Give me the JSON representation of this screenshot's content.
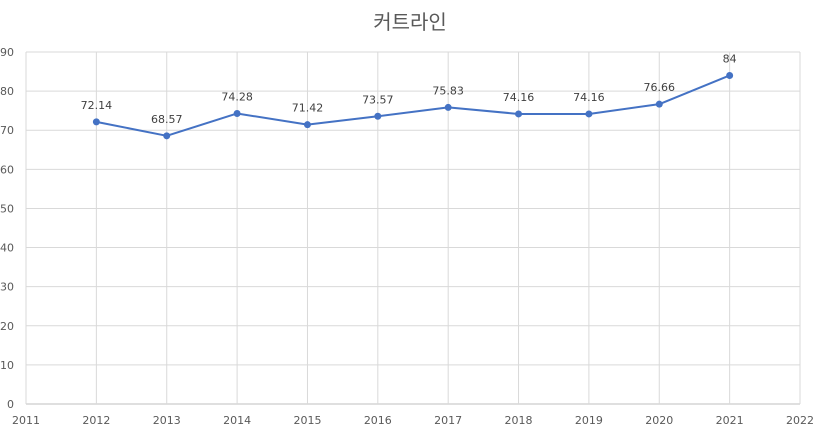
{
  "chart_data": {
    "type": "line",
    "title": "커트라인",
    "xlabel": "",
    "ylabel": "",
    "x": [
      2012,
      2013,
      2014,
      2015,
      2016,
      2017,
      2018,
      2019,
      2020,
      2021
    ],
    "series": [
      {
        "values": [
          72.14,
          68.57,
          74.28,
          71.42,
          73.57,
          75.83,
          74.16,
          74.16,
          76.66,
          84
        ],
        "labels": [
          "72.14",
          "68.57",
          "74.28",
          "71.42",
          "73.57",
          "75.83",
          "74.16",
          "74.16",
          "76.66",
          "84"
        ]
      }
    ],
    "xlim": [
      2011,
      2022
    ],
    "ylim": [
      0,
      90
    ],
    "x_ticks": [
      "2011",
      "2012",
      "2013",
      "2014",
      "2015",
      "2016",
      "2017",
      "2018",
      "2019",
      "2020",
      "2021",
      "2022"
    ],
    "y_ticks": [
      "0",
      "10",
      "20",
      "30",
      "40",
      "50",
      "60",
      "70",
      "80",
      "90"
    ],
    "grid": true,
    "legend": "none",
    "colors": {
      "line": "#4472C4",
      "grid": "#D9D9D9",
      "text": "#595959"
    }
  }
}
